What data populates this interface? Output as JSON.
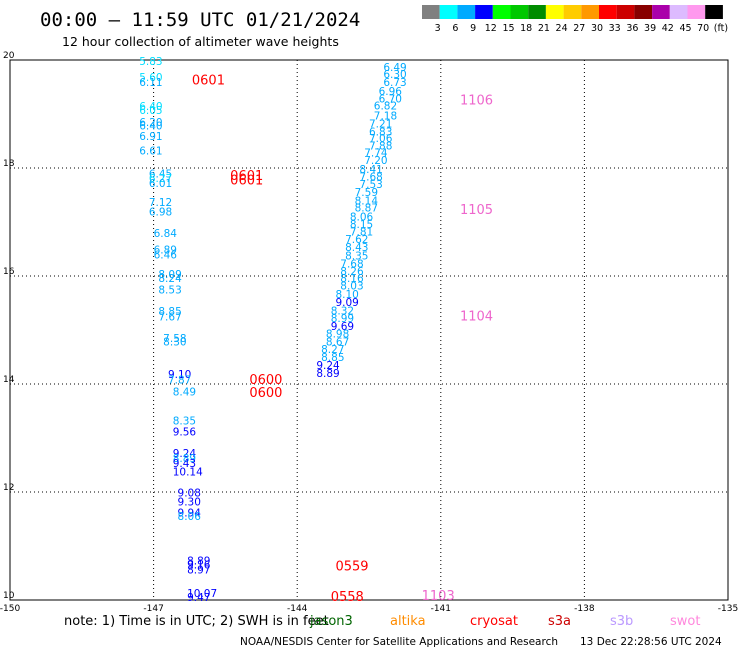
{
  "title": "00:00 – 11:59 UTC 01/21/2024",
  "subtitle": "12 hour collection of altimeter wave heights",
  "legend": {
    "labels": [
      "3",
      "6",
      "9",
      "12",
      "15",
      "18",
      "21",
      "24",
      "27",
      "30",
      "33",
      "36",
      "39",
      "42",
      "45",
      "70",
      "(ft)"
    ],
    "colors": [
      "#808080",
      "#00ffff",
      "#00aaff",
      "#0000ff",
      "#00ff00",
      "#00c800",
      "#008c00",
      "#ffff00",
      "#ffcc00",
      "#ff9900",
      "#ff0000",
      "#cc0000",
      "#880000",
      "#aa00aa",
      "#ddbbff",
      "#ff99ee",
      "#000000"
    ]
  },
  "chart_data": {
    "type": "scatter",
    "xlim": [
      -150,
      -135
    ],
    "ylim": [
      10,
      20
    ],
    "x_ticks": [
      "-150",
      "-147",
      "-144",
      "-141",
      "-138",
      "-135"
    ],
    "y_ticks": [
      "20",
      "18",
      "16",
      "14",
      "12",
      "10"
    ],
    "grid": true,
    "tracks": [
      {
        "points": [
          {
            "x": -147.3,
            "y": 19.91,
            "v": "5.83",
            "c": "#00ddff"
          },
          {
            "x": -147.3,
            "y": 19.61,
            "v": "5.60",
            "c": "#00ddff"
          },
          {
            "x": -147.3,
            "y": 19.52,
            "v": "6.11",
            "c": "#00aaff"
          },
          {
            "x": -147.3,
            "y": 19.07,
            "v": "6.40",
            "c": "#00ddff"
          },
          {
            "x": -147.3,
            "y": 19.0,
            "v": "6.05",
            "c": "#00ddff"
          },
          {
            "x": -147.3,
            "y": 18.78,
            "v": "6.20",
            "c": "#00aaff"
          },
          {
            "x": -147.3,
            "y": 18.71,
            "v": "6.40",
            "c": "#00aaff"
          },
          {
            "x": -147.3,
            "y": 18.52,
            "v": "6.91",
            "c": "#00aaff"
          },
          {
            "x": -147.3,
            "y": 18.25,
            "v": "6.61",
            "c": "#00aaff"
          },
          {
            "x": -147.1,
            "y": 17.82,
            "v": "6.45",
            "c": "#00aaff"
          },
          {
            "x": -147.1,
            "y": 17.74,
            "v": "6.27",
            "c": "#00ddff"
          },
          {
            "x": -147.1,
            "y": 17.65,
            "v": "6.01",
            "c": "#00aaff"
          },
          {
            "x": -147.1,
            "y": 17.3,
            "v": "7.12",
            "c": "#00aaff"
          },
          {
            "x": -147.1,
            "y": 17.12,
            "v": "6.98",
            "c": "#00aaff"
          },
          {
            "x": -147.0,
            "y": 16.72,
            "v": "6.84",
            "c": "#00aaff"
          },
          {
            "x": -147.0,
            "y": 16.42,
            "v": "6.89",
            "c": "#00aaff"
          },
          {
            "x": -147.0,
            "y": 16.32,
            "v": "6.46",
            "c": "#00aaff"
          },
          {
            "x": -146.9,
            "y": 15.96,
            "v": "8.09",
            "c": "#00aaff"
          },
          {
            "x": -146.9,
            "y": 15.89,
            "v": "8.24",
            "c": "#00aaff"
          },
          {
            "x": -146.9,
            "y": 15.68,
            "v": "8.53",
            "c": "#00aaff"
          },
          {
            "x": -146.9,
            "y": 15.28,
            "v": "8.85",
            "c": "#00aaff"
          },
          {
            "x": -146.9,
            "y": 15.18,
            "v": "7.67",
            "c": "#00aaff"
          },
          {
            "x": -146.8,
            "y": 14.78,
            "v": "7.58",
            "c": "#00aaff"
          },
          {
            "x": -146.8,
            "y": 14.71,
            "v": "8.30",
            "c": "#00aaff"
          },
          {
            "x": -146.7,
            "y": 14.11,
            "v": "9.10",
            "c": "#0000ff"
          },
          {
            "x": -146.7,
            "y": 14.01,
            "v": "7.87",
            "c": "#00aaff"
          },
          {
            "x": -146.6,
            "y": 13.79,
            "v": "8.49",
            "c": "#00aaff"
          },
          {
            "x": -146.6,
            "y": 13.25,
            "v": "8.35",
            "c": "#00aaff"
          },
          {
            "x": -146.6,
            "y": 13.05,
            "v": "9.56",
            "c": "#0000ff"
          },
          {
            "x": -146.6,
            "y": 12.65,
            "v": "9.24",
            "c": "#0000ff"
          },
          {
            "x": -146.6,
            "y": 12.56,
            "v": "8.89",
            "c": "#00aaff"
          },
          {
            "x": -146.6,
            "y": 12.46,
            "v": "9.43",
            "c": "#0000ff"
          },
          {
            "x": -146.6,
            "y": 12.31,
            "v": "10.14",
            "c": "#0000ff"
          },
          {
            "x": -146.5,
            "y": 11.92,
            "v": "9.08",
            "c": "#0000ff"
          },
          {
            "x": -146.5,
            "y": 11.75,
            "v": "9.30",
            "c": "#0000ff"
          },
          {
            "x": -146.5,
            "y": 11.55,
            "v": "9.94",
            "c": "#0000ff"
          },
          {
            "x": -146.5,
            "y": 11.48,
            "v": "8.06",
            "c": "#00aaff"
          },
          {
            "x": -146.3,
            "y": 10.66,
            "v": "8.89",
            "c": "#0000ff"
          },
          {
            "x": -146.3,
            "y": 10.58,
            "v": "9.16",
            "c": "#0000ff"
          },
          {
            "x": -146.3,
            "y": 10.49,
            "v": "8.97",
            "c": "#0000ff"
          },
          {
            "x": -146.3,
            "y": 10.06,
            "v": "10.07",
            "c": "#0000ff"
          },
          {
            "x": -146.3,
            "y": 9.98,
            "v": "9.47",
            "c": "#0000ff"
          }
        ]
      },
      {
        "points": [
          {
            "x": -142.2,
            "y": 19.8,
            "v": "6.49",
            "c": "#00aaff"
          },
          {
            "x": -142.2,
            "y": 19.67,
            "v": "6.30",
            "c": "#00aaff"
          },
          {
            "x": -142.2,
            "y": 19.52,
            "v": "6.73",
            "c": "#00aaff"
          },
          {
            "x": -142.3,
            "y": 19.35,
            "v": "6.96",
            "c": "#00aaff"
          },
          {
            "x": -142.3,
            "y": 19.21,
            "v": "6.70",
            "c": "#00aaff"
          },
          {
            "x": -142.4,
            "y": 19.08,
            "v": "6.82",
            "c": "#00aaff"
          },
          {
            "x": -142.4,
            "y": 18.9,
            "v": "7.18",
            "c": "#00aaff"
          },
          {
            "x": -142.5,
            "y": 18.75,
            "v": "7.21",
            "c": "#00aaff"
          },
          {
            "x": -142.5,
            "y": 18.6,
            "v": "6.83",
            "c": "#00aaff"
          },
          {
            "x": -142.5,
            "y": 18.48,
            "v": "7.06",
            "c": "#00aaff"
          },
          {
            "x": -142.5,
            "y": 18.34,
            "v": "7.88",
            "c": "#00aaff"
          },
          {
            "x": -142.6,
            "y": 18.21,
            "v": "7.74",
            "c": "#00aaff"
          },
          {
            "x": -142.6,
            "y": 18.07,
            "v": "7.20",
            "c": "#00aaff"
          },
          {
            "x": -142.7,
            "y": 17.91,
            "v": "8.41",
            "c": "#00aaff"
          },
          {
            "x": -142.7,
            "y": 17.77,
            "v": "7.68",
            "c": "#00aaff"
          },
          {
            "x": -142.7,
            "y": 17.63,
            "v": "7.53",
            "c": "#00aaff"
          },
          {
            "x": -142.8,
            "y": 17.48,
            "v": "7.59",
            "c": "#00aaff"
          },
          {
            "x": -142.8,
            "y": 17.32,
            "v": "8.14",
            "c": "#00aaff"
          },
          {
            "x": -142.8,
            "y": 17.19,
            "v": "8.87",
            "c": "#00aaff"
          },
          {
            "x": -142.9,
            "y": 17.03,
            "v": "8.06",
            "c": "#00aaff"
          },
          {
            "x": -142.9,
            "y": 16.89,
            "v": "8.15",
            "c": "#00aaff"
          },
          {
            "x": -142.9,
            "y": 16.75,
            "v": "7.81",
            "c": "#00aaff"
          },
          {
            "x": -143.0,
            "y": 16.61,
            "v": "7.62",
            "c": "#00aaff"
          },
          {
            "x": -143.0,
            "y": 16.46,
            "v": "8.43",
            "c": "#00aaff"
          },
          {
            "x": -143.0,
            "y": 16.31,
            "v": "8.35",
            "c": "#00aaff"
          },
          {
            "x": -143.1,
            "y": 16.16,
            "v": "7.68",
            "c": "#00aaff"
          },
          {
            "x": -143.1,
            "y": 16.02,
            "v": "8.26",
            "c": "#00aaff"
          },
          {
            "x": -143.1,
            "y": 15.89,
            "v": "8.16",
            "c": "#00aaff"
          },
          {
            "x": -143.1,
            "y": 15.75,
            "v": "8.03",
            "c": "#00aaff"
          },
          {
            "x": -143.2,
            "y": 15.59,
            "v": "8.10",
            "c": "#00aaff"
          },
          {
            "x": -143.2,
            "y": 15.44,
            "v": "9.09",
            "c": "#0000ff"
          },
          {
            "x": -143.3,
            "y": 15.29,
            "v": "8.32",
            "c": "#00aaff"
          },
          {
            "x": -143.3,
            "y": 15.15,
            "v": "8.99",
            "c": "#00aaff"
          },
          {
            "x": -143.3,
            "y": 15.0,
            "v": "9.69",
            "c": "#0000ff"
          },
          {
            "x": -143.4,
            "y": 14.86,
            "v": "8.98",
            "c": "#00aaff"
          },
          {
            "x": -143.4,
            "y": 14.71,
            "v": "8.67",
            "c": "#00aaff"
          },
          {
            "x": -143.5,
            "y": 14.57,
            "v": "8.27",
            "c": "#00aaff"
          },
          {
            "x": -143.5,
            "y": 14.43,
            "v": "8.85",
            "c": "#00aaff"
          },
          {
            "x": -143.6,
            "y": 14.28,
            "v": "9.24",
            "c": "#0000ff"
          },
          {
            "x": -143.6,
            "y": 14.13,
            "v": "8.89",
            "c": "#0000ff"
          }
        ]
      }
    ],
    "pass_labels": [
      {
        "text": "0601",
        "x": -146.2,
        "y": 19.55,
        "c": "#ff0000"
      },
      {
        "text": "0601",
        "x": -145.4,
        "y": 17.78,
        "c": "#ff0000"
      },
      {
        "text": "0601",
        "x": -145.4,
        "y": 17.69,
        "c": "#ff0000"
      },
      {
        "text": "0600",
        "x": -145.0,
        "y": 14.0,
        "c": "#ff0000"
      },
      {
        "text": "0600",
        "x": -145.0,
        "y": 13.76,
        "c": "#ff0000"
      },
      {
        "text": "0559",
        "x": -143.2,
        "y": 10.55,
        "c": "#ff0000"
      },
      {
        "text": "0558",
        "x": -143.3,
        "y": 9.98,
        "c": "#ff0000"
      },
      {
        "text": "1106",
        "x": -140.6,
        "y": 19.18,
        "c": "#ee66cc"
      },
      {
        "text": "1105",
        "x": -140.6,
        "y": 17.15,
        "c": "#ee66cc"
      },
      {
        "text": "1104",
        "x": -140.6,
        "y": 15.18,
        "c": "#ee66cc"
      },
      {
        "text": "1103",
        "x": -141.4,
        "y": 10.0,
        "c": "#ee66cc"
      }
    ]
  },
  "note": "note: 1) Time is in UTC; 2) SWH is in feet",
  "satellites": [
    {
      "name": "jason3",
      "color": "#006400"
    },
    {
      "name": "altika",
      "color": "#ff8c00"
    },
    {
      "name": "cryosat",
      "color": "#ff0000"
    },
    {
      "name": "s3a",
      "color": "#cc0000"
    },
    {
      "name": "s3b",
      "color": "#bb99ff"
    },
    {
      "name": "swot",
      "color": "#ff88dd"
    }
  ],
  "credit": "NOAA/NESDIS Center for Satellite Applications and Research",
  "generated": "13 Dec 22:28:56 UTC 2024"
}
